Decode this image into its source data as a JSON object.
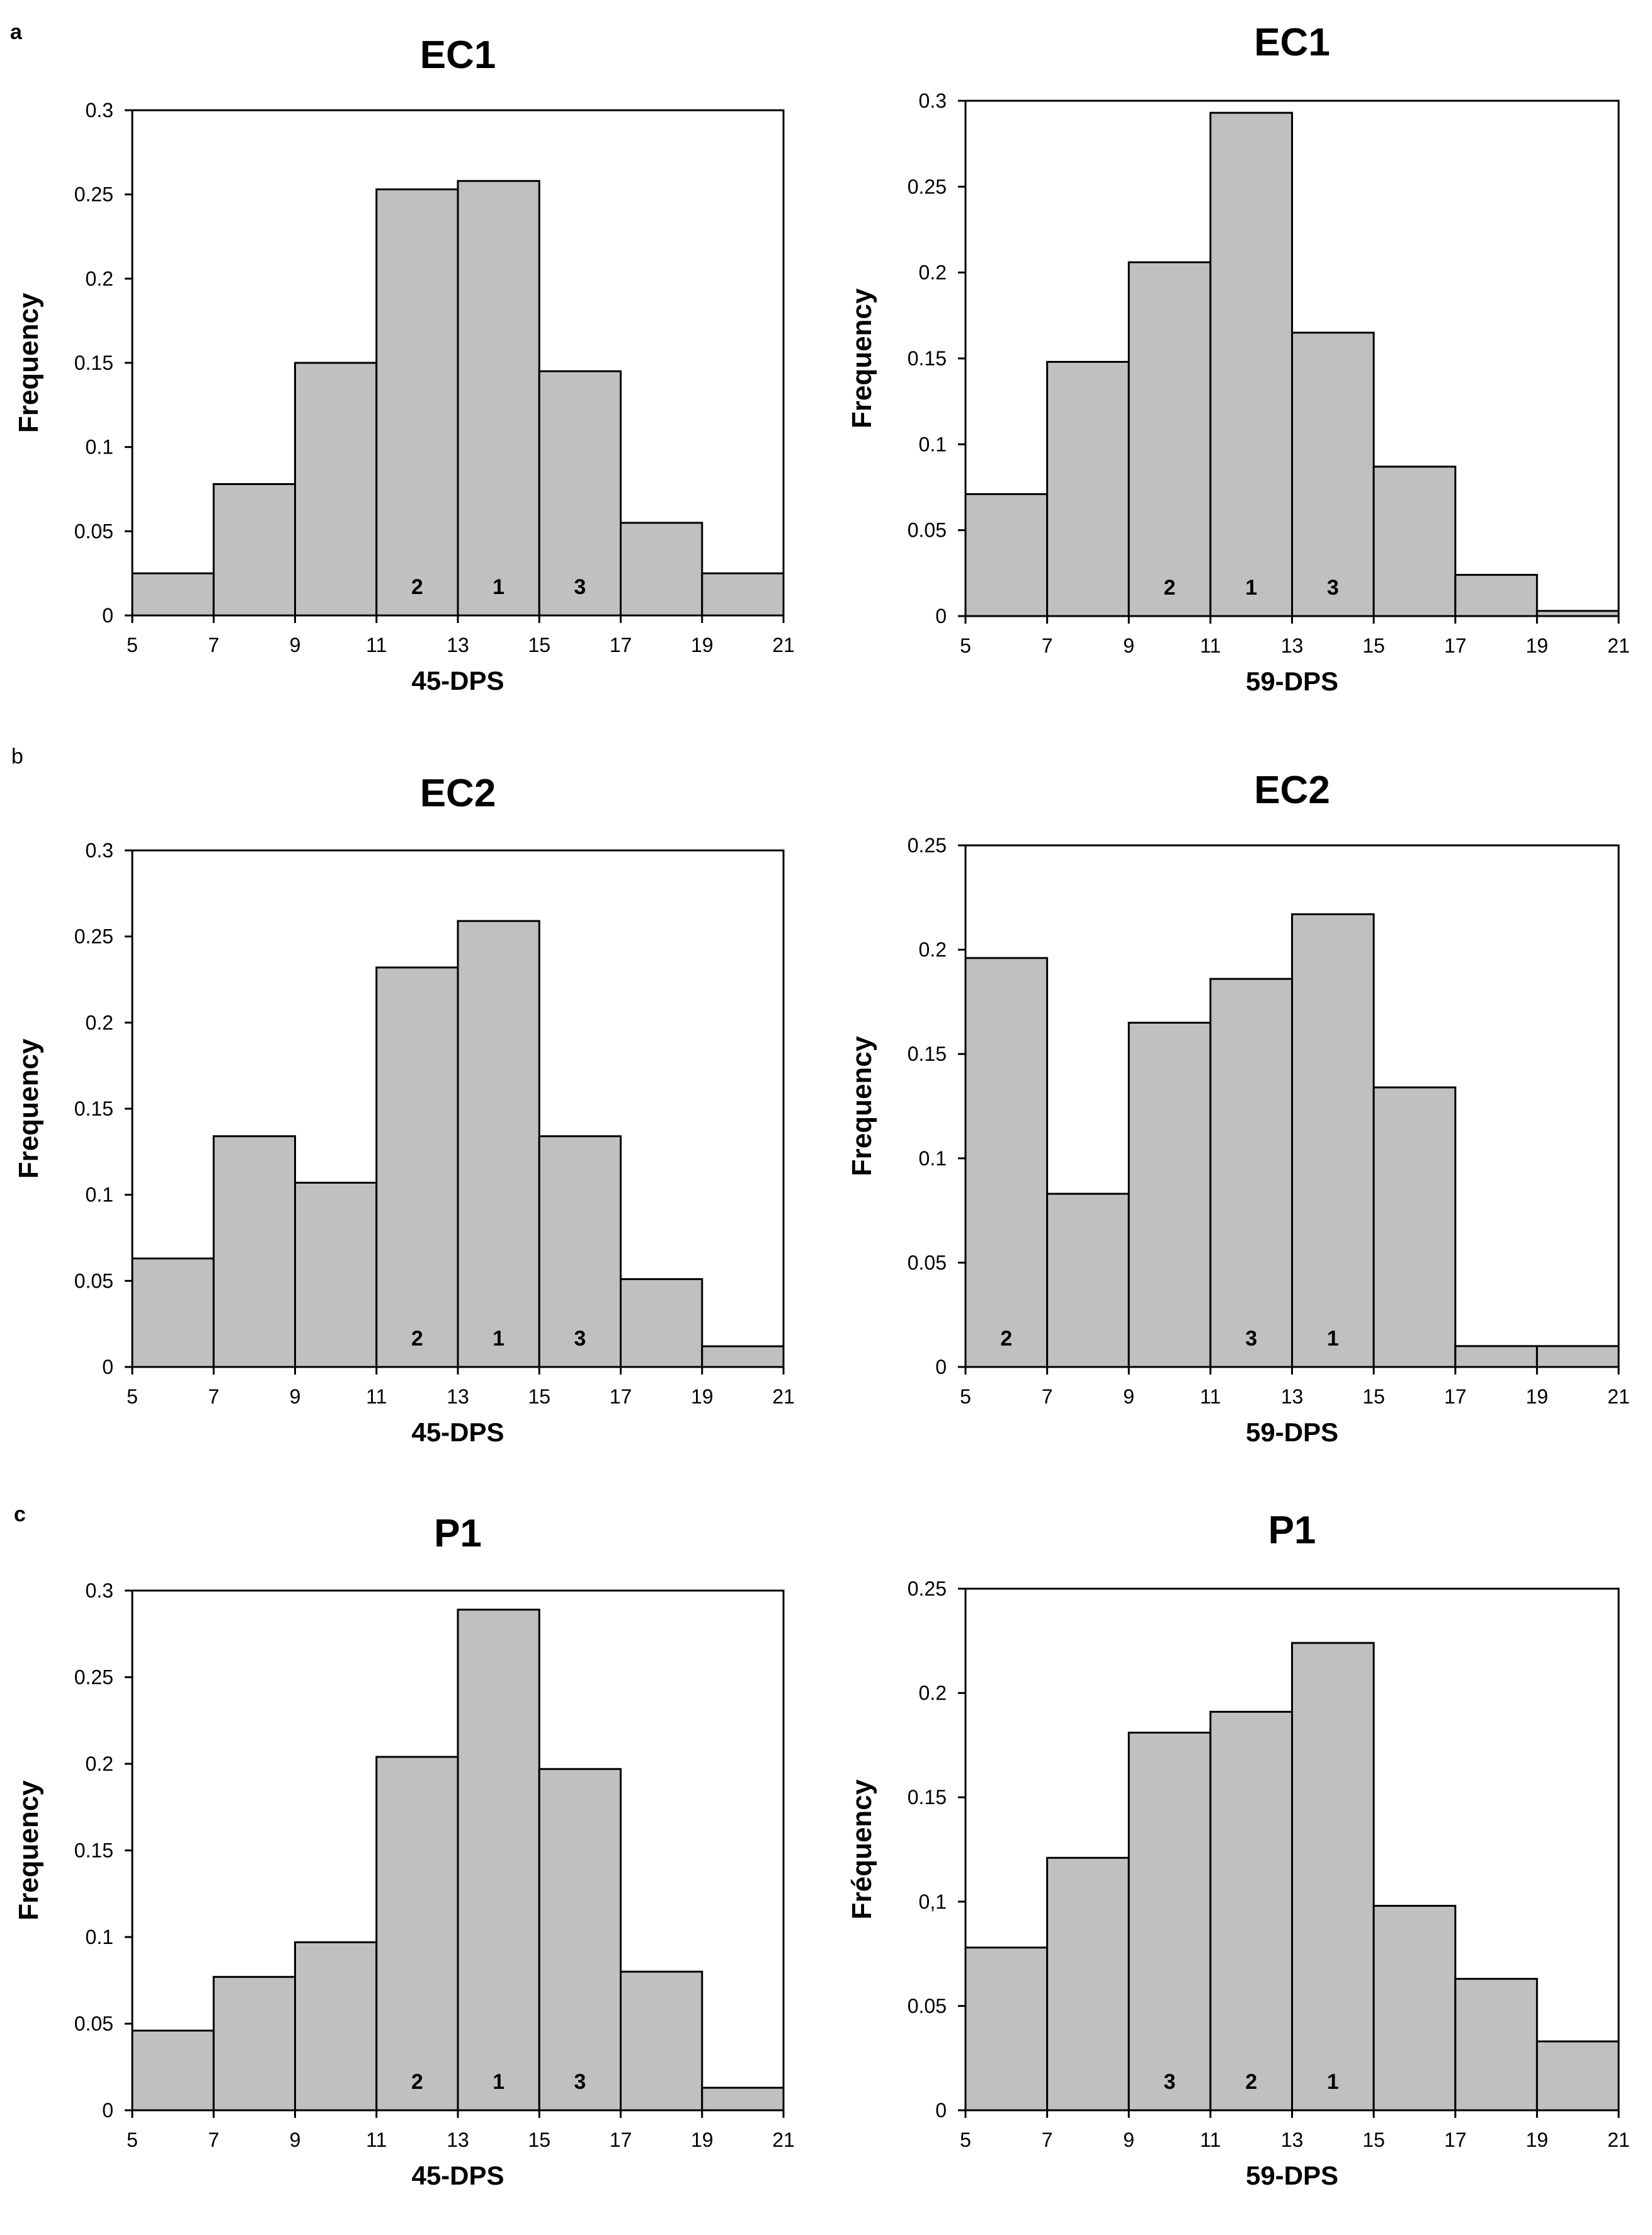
{
  "panel_labels": [
    "a",
    "b",
    "c"
  ],
  "chart_data": [
    {
      "type": "bar",
      "panel": "a",
      "title": "EC1",
      "xlabel": "45-DPS",
      "ylabel": "Frequency",
      "bin_edges": [
        5,
        7,
        9,
        11,
        13,
        15,
        17,
        19,
        21
      ],
      "values": [
        0.025,
        0.078,
        0.15,
        0.253,
        0.258,
        0.145,
        0.055,
        0.025
      ],
      "ylim": [
        0,
        0.3
      ],
      "yticks": [
        "0",
        "0.05",
        "0.1",
        "0.15",
        "0.2",
        "0.25",
        "0.3"
      ],
      "xticks": [
        "5",
        "7",
        "9",
        "11",
        "13",
        "15",
        "17",
        "19",
        "21"
      ],
      "bar_labels": [
        {
          "bin": 3,
          "text": "2"
        },
        {
          "bin": 4,
          "text": "1"
        },
        {
          "bin": 5,
          "text": "3"
        }
      ]
    },
    {
      "type": "bar",
      "panel": "a",
      "title": "EC1",
      "xlabel": "59-DPS",
      "ylabel": "Frequency",
      "bin_edges": [
        5,
        7,
        9,
        11,
        13,
        15,
        17,
        19,
        21
      ],
      "values": [
        0.071,
        0.148,
        0.206,
        0.293,
        0.165,
        0.087,
        0.024,
        0.003
      ],
      "ylim": [
        0,
        0.3
      ],
      "yticks": [
        "0",
        "0.05",
        "0.1",
        "0.15",
        "0.2",
        "0.25",
        "0.3"
      ],
      "xticks": [
        "5",
        "7",
        "9",
        "11",
        "13",
        "15",
        "17",
        "19",
        "21"
      ],
      "bar_labels": [
        {
          "bin": 2,
          "text": "2"
        },
        {
          "bin": 3,
          "text": "1"
        },
        {
          "bin": 4,
          "text": "3"
        }
      ]
    },
    {
      "type": "bar",
      "panel": "b",
      "title": "EC2",
      "xlabel": "45-DPS",
      "ylabel": "Frequency",
      "bin_edges": [
        5,
        7,
        9,
        11,
        13,
        15,
        17,
        19,
        21
      ],
      "values": [
        0.063,
        0.134,
        0.107,
        0.232,
        0.259,
        0.134,
        0.051,
        0.012
      ],
      "ylim": [
        0,
        0.3
      ],
      "yticks": [
        "0",
        "0.05",
        "0.1",
        "0.15",
        "0.2",
        "0.25",
        "0.3"
      ],
      "xticks": [
        "5",
        "7",
        "9",
        "11",
        "13",
        "15",
        "17",
        "19",
        "21"
      ],
      "bar_labels": [
        {
          "bin": 3,
          "text": "2"
        },
        {
          "bin": 4,
          "text": "1"
        },
        {
          "bin": 5,
          "text": "3"
        }
      ]
    },
    {
      "type": "bar",
      "panel": "b",
      "title": "EC2",
      "xlabel": "59-DPS",
      "ylabel": "Frequency",
      "bin_edges": [
        5,
        7,
        9,
        11,
        13,
        15,
        17,
        19,
        21
      ],
      "values": [
        0.196,
        0.083,
        0.165,
        0.186,
        0.217,
        0.134,
        0.01,
        0.01
      ],
      "ylim": [
        0,
        0.25
      ],
      "yticks": [
        "0",
        "0.05",
        "0.1",
        "0.15",
        "0.2",
        "0.25"
      ],
      "xticks": [
        "5",
        "7",
        "9",
        "11",
        "13",
        "15",
        "17",
        "19",
        "21"
      ],
      "bar_labels": [
        {
          "bin": 0,
          "text": "2"
        },
        {
          "bin": 3,
          "text": "3"
        },
        {
          "bin": 4,
          "text": "1"
        }
      ]
    },
    {
      "type": "bar",
      "panel": "c",
      "title": "P1",
      "xlabel": "45-DPS",
      "ylabel": "Frequency",
      "bin_edges": [
        5,
        7,
        9,
        11,
        13,
        15,
        17,
        19,
        21
      ],
      "values": [
        0.046,
        0.077,
        0.097,
        0.204,
        0.289,
        0.197,
        0.08,
        0.013
      ],
      "ylim": [
        0,
        0.3
      ],
      "yticks": [
        "0",
        "0.05",
        "0.1",
        "0.15",
        "0.2",
        "0.25",
        "0.3"
      ],
      "xticks": [
        "5",
        "7",
        "9",
        "11",
        "13",
        "15",
        "17",
        "19",
        "21"
      ],
      "bar_labels": [
        {
          "bin": 3,
          "text": "2"
        },
        {
          "bin": 4,
          "text": "1"
        },
        {
          "bin": 5,
          "text": "3"
        }
      ]
    },
    {
      "type": "bar",
      "panel": "c",
      "title": "P1",
      "xlabel": "59-DPS",
      "ylabel": "Fréquency",
      "bin_edges": [
        5,
        7,
        9,
        11,
        13,
        15,
        17,
        19,
        21
      ],
      "values": [
        0.078,
        0.121,
        0.181,
        0.191,
        0.224,
        0.098,
        0.063,
        0.033
      ],
      "ylim": [
        0,
        0.25
      ],
      "yticks": [
        "0",
        "0.05",
        "0,1",
        "0.15",
        "0.2",
        "0.25"
      ],
      "xticks": [
        "5",
        "7",
        "9",
        "11",
        "13",
        "15",
        "17",
        "19",
        "21"
      ],
      "bar_labels": [
        {
          "bin": 2,
          "text": "3"
        },
        {
          "bin": 3,
          "text": "2"
        },
        {
          "bin": 4,
          "text": "1"
        }
      ]
    }
  ],
  "colors": {
    "bar_fill": "#c0c0c0",
    "bar_stroke": "#000000",
    "text": "#000000"
  }
}
